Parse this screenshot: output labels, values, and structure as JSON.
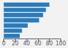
{
  "chart_data": {
    "type": "bar",
    "orientation": "horizontal",
    "categories": [
      null,
      null,
      null,
      null,
      null,
      null,
      null
    ],
    "values": [
      80,
      74,
      69,
      62,
      42,
      32,
      28
    ],
    "color": "#2b7bba",
    "xlim": [
      0,
      100
    ],
    "xticks": [
      0,
      20,
      40,
      60,
      80,
      100
    ],
    "grid": false,
    "tick_labels": "x"
  }
}
